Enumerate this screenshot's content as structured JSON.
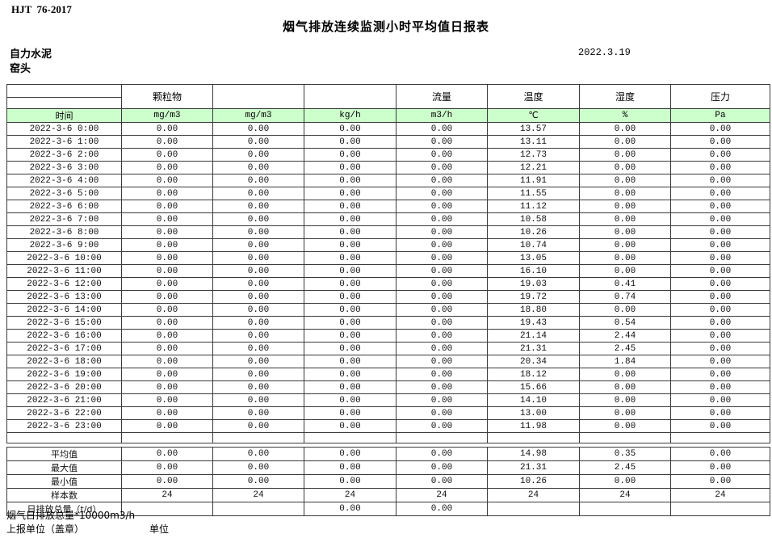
{
  "page": {
    "doc_code": "HJT  76-2017",
    "title": "烟气排放连续监测小时平均值日报表",
    "company": "自力水泥",
    "station": "窑头",
    "date": "2022.3.19"
  },
  "colors": {
    "unit_row_bg": "#ccffcc",
    "border": "#3a3a3a"
  },
  "table": {
    "time_label": "时间",
    "group_headers": [
      "",
      "颗粒物",
      "",
      "",
      "流量",
      "温度",
      "湿度",
      "压力"
    ],
    "units": [
      "mg/m3",
      "mg/m3",
      "kg/h",
      "m3/h",
      "℃",
      "%",
      "Pa"
    ],
    "rows": [
      {
        "time": "2022-3-6 0:00",
        "values": [
          "0.00",
          "0.00",
          "0.00",
          "0.00",
          "13.57",
          "0.00",
          "0.00"
        ]
      },
      {
        "time": "2022-3-6 1:00",
        "values": [
          "0.00",
          "0.00",
          "0.00",
          "0.00",
          "13.11",
          "0.00",
          "0.00"
        ]
      },
      {
        "time": "2022-3-6 2:00",
        "values": [
          "0.00",
          "0.00",
          "0.00",
          "0.00",
          "12.73",
          "0.00",
          "0.00"
        ]
      },
      {
        "time": "2022-3-6 3:00",
        "values": [
          "0.00",
          "0.00",
          "0.00",
          "0.00",
          "12.21",
          "0.00",
          "0.00"
        ]
      },
      {
        "time": "2022-3-6 4:00",
        "values": [
          "0.00",
          "0.00",
          "0.00",
          "0.00",
          "11.91",
          "0.00",
          "0.00"
        ]
      },
      {
        "time": "2022-3-6 5:00",
        "values": [
          "0.00",
          "0.00",
          "0.00",
          "0.00",
          "11.55",
          "0.00",
          "0.00"
        ]
      },
      {
        "time": "2022-3-6 6:00",
        "values": [
          "0.00",
          "0.00",
          "0.00",
          "0.00",
          "11.12",
          "0.00",
          "0.00"
        ]
      },
      {
        "time": "2022-3-6 7:00",
        "values": [
          "0.00",
          "0.00",
          "0.00",
          "0.00",
          "10.58",
          "0.00",
          "0.00"
        ]
      },
      {
        "time": "2022-3-6 8:00",
        "values": [
          "0.00",
          "0.00",
          "0.00",
          "0.00",
          "10.26",
          "0.00",
          "0.00"
        ]
      },
      {
        "time": "2022-3-6 9:00",
        "values": [
          "0.00",
          "0.00",
          "0.00",
          "0.00",
          "10.74",
          "0.00",
          "0.00"
        ]
      },
      {
        "time": "2022-3-6 10:00",
        "values": [
          "0.00",
          "0.00",
          "0.00",
          "0.00",
          "13.05",
          "0.00",
          "0.00"
        ]
      },
      {
        "time": "2022-3-6 11:00",
        "values": [
          "0.00",
          "0.00",
          "0.00",
          "0.00",
          "16.10",
          "0.00",
          "0.00"
        ]
      },
      {
        "time": "2022-3-6 12:00",
        "values": [
          "0.00",
          "0.00",
          "0.00",
          "0.00",
          "19.03",
          "0.41",
          "0.00"
        ]
      },
      {
        "time": "2022-3-6 13:00",
        "values": [
          "0.00",
          "0.00",
          "0.00",
          "0.00",
          "19.72",
          "0.74",
          "0.00"
        ]
      },
      {
        "time": "2022-3-6 14:00",
        "values": [
          "0.00",
          "0.00",
          "0.00",
          "0.00",
          "18.80",
          "0.00",
          "0.00"
        ]
      },
      {
        "time": "2022-3-6 15:00",
        "values": [
          "0.00",
          "0.00",
          "0.00",
          "0.00",
          "19.43",
          "0.54",
          "0.00"
        ]
      },
      {
        "time": "2022-3-6 16:00",
        "values": [
          "0.00",
          "0.00",
          "0.00",
          "0.00",
          "21.14",
          "2.44",
          "0.00"
        ]
      },
      {
        "time": "2022-3-6 17:00",
        "values": [
          "0.00",
          "0.00",
          "0.00",
          "0.00",
          "21.31",
          "2.45",
          "0.00"
        ]
      },
      {
        "time": "2022-3-6 18:00",
        "values": [
          "0.00",
          "0.00",
          "0.00",
          "0.00",
          "20.34",
          "1.84",
          "0.00"
        ]
      },
      {
        "time": "2022-3-6 19:00",
        "values": [
          "0.00",
          "0.00",
          "0.00",
          "0.00",
          "18.12",
          "0.00",
          "0.00"
        ]
      },
      {
        "time": "2022-3-6 20:00",
        "values": [
          "0.00",
          "0.00",
          "0.00",
          "0.00",
          "15.66",
          "0.00",
          "0.00"
        ]
      },
      {
        "time": "2022-3-6 21:00",
        "values": [
          "0.00",
          "0.00",
          "0.00",
          "0.00",
          "14.10",
          "0.00",
          "0.00"
        ]
      },
      {
        "time": "2022-3-6 22:00",
        "values": [
          "0.00",
          "0.00",
          "0.00",
          "0.00",
          "13.00",
          "0.00",
          "0.00"
        ]
      },
      {
        "time": "2022-3-6 23:00",
        "values": [
          "0.00",
          "0.00",
          "0.00",
          "0.00",
          "11.98",
          "0.00",
          "0.00"
        ]
      }
    ],
    "summary": [
      {
        "label": "平均值",
        "values": [
          "0.00",
          "0.00",
          "0.00",
          "0.00",
          "14.98",
          "0.35",
          "0.00"
        ]
      },
      {
        "label": "最大值",
        "values": [
          "0.00",
          "0.00",
          "0.00",
          "0.00",
          "21.31",
          "2.45",
          "0.00"
        ]
      },
      {
        "label": "最小值",
        "values": [
          "0.00",
          "0.00",
          "0.00",
          "0.00",
          "10.26",
          "0.00",
          "0.00"
        ]
      },
      {
        "label": "样本数",
        "values": [
          "24",
          "24",
          "24",
          "24",
          "24",
          "24",
          "24"
        ]
      },
      {
        "label": "日排放总量（t/d）",
        "values": [
          "",
          "",
          "0.00",
          "0.00",
          "",
          "",
          ""
        ]
      }
    ]
  },
  "footer": {
    "note": "烟气日排放总量*10000m3/h",
    "report_unit_label": "上报单位（盖章）",
    "unit_label": "单位"
  }
}
